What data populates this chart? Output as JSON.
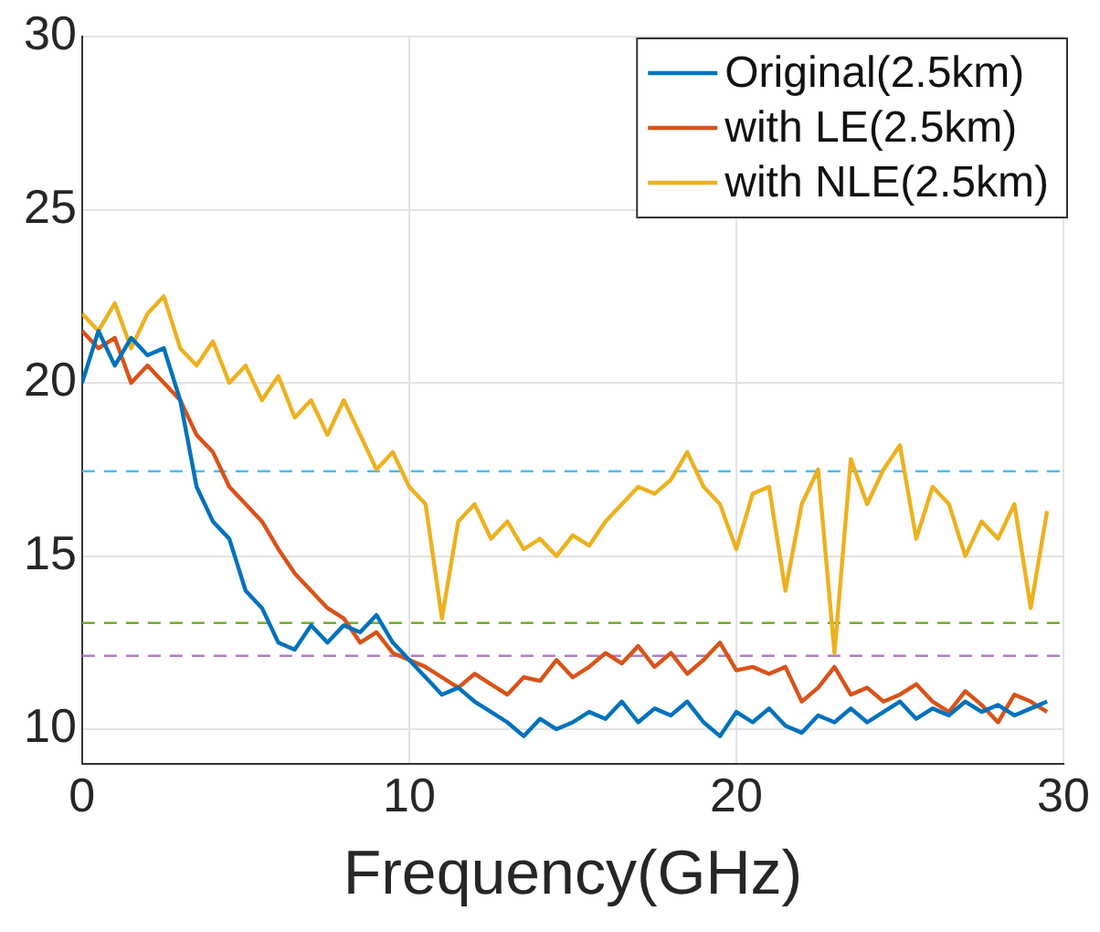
{
  "chart_data": {
    "type": "line",
    "xlabel": "Frequency(GHz)",
    "x": [
      0,
      0.5,
      1,
      1.5,
      2,
      2.5,
      3,
      3.5,
      4,
      4.5,
      5,
      5.5,
      6,
      6.5,
      7,
      7.5,
      8,
      8.5,
      9,
      9.5,
      10,
      10.5,
      11,
      11.5,
      12,
      12.5,
      13,
      13.5,
      14,
      14.5,
      15,
      15.5,
      16,
      16.5,
      17,
      17.5,
      18,
      18.5,
      19,
      19.5,
      20,
      20.5,
      21,
      21.5,
      22,
      22.5,
      23,
      23.5,
      24,
      24.5,
      25,
      25.5,
      26,
      26.5,
      27,
      27.5,
      28,
      28.5,
      29,
      29.5
    ],
    "series": [
      {
        "name": "Original(2.5km)",
        "color": "#0072bd",
        "values": [
          20,
          21.5,
          20.5,
          21.3,
          20.8,
          21,
          19.5,
          17,
          16,
          15.5,
          14,
          13.5,
          12.5,
          12.3,
          13,
          12.5,
          13,
          12.8,
          13.3,
          12.5,
          12,
          11.5,
          11,
          11.2,
          10.8,
          10.5,
          10.2,
          9.8,
          10.3,
          10,
          10.2,
          10.5,
          10.3,
          10.8,
          10.2,
          10.6,
          10.4,
          10.8,
          10.2,
          9.8,
          10.5,
          10.2,
          10.6,
          10.1,
          9.9,
          10.4,
          10.2,
          10.6,
          10.2,
          10.5,
          10.8,
          10.3,
          10.6,
          10.4,
          10.8,
          10.5,
          10.7,
          10.4,
          10.6,
          10.8
        ]
      },
      {
        "name": "with LE(2.5km)",
        "color": "#d95319",
        "values": [
          21.5,
          21,
          21.3,
          20,
          20.5,
          20,
          19.5,
          18.5,
          18,
          17,
          16.5,
          16,
          15.2,
          14.5,
          14,
          13.5,
          13.2,
          12.5,
          12.8,
          12.2,
          12,
          11.8,
          11.5,
          11.2,
          11.6,
          11.3,
          11,
          11.5,
          11.4,
          12,
          11.5,
          11.8,
          12.2,
          11.9,
          12.4,
          11.8,
          12.2,
          11.6,
          12,
          12.5,
          11.7,
          11.8,
          11.6,
          11.8,
          10.8,
          11.2,
          11.8,
          11,
          11.2,
          10.8,
          11,
          11.3,
          10.8,
          10.5,
          11.1,
          10.7,
          10.2,
          11,
          10.8,
          10.5
        ]
      },
      {
        "name": "with NLE(2.5km)",
        "color": "#edb120",
        "values": [
          22,
          21.5,
          22.3,
          21,
          22,
          22.5,
          21,
          20.5,
          21.2,
          20,
          20.5,
          19.5,
          20.2,
          19,
          19.5,
          18.5,
          19.5,
          18.5,
          17.5,
          18,
          17,
          16.5,
          13.2,
          16,
          16.5,
          15.5,
          16,
          15.2,
          15.5,
          15,
          15.6,
          15.3,
          16,
          16.5,
          17,
          16.8,
          17.2,
          18,
          17,
          16.5,
          15.2,
          16.8,
          17,
          14,
          16.5,
          17.5,
          12.2,
          17.8,
          16.5,
          17.5,
          18.2,
          15.5,
          17,
          16.5,
          15,
          16,
          15.5,
          16.5,
          13.5,
          16.3
        ]
      }
    ],
    "xlim": [
      0,
      30
    ],
    "xticks": [
      0,
      10,
      20,
      30
    ],
    "ylim": [
      9,
      30
    ],
    "yticks": [
      10,
      15,
      20,
      25,
      30
    ],
    "ref_lines": [
      {
        "axis": "y",
        "value": 17.45,
        "color": "#4dbeee",
        "line_style": "dashed"
      },
      {
        "axis": "y",
        "value": 13.07,
        "color": "#77ac30",
        "line_style": "dashed"
      },
      {
        "axis": "y",
        "value": 12.12,
        "color": "#b07cc6",
        "line_style": "dashed"
      }
    ],
    "grid": true,
    "legend": "top right",
    "marker": "none",
    "line_style": "solid"
  }
}
